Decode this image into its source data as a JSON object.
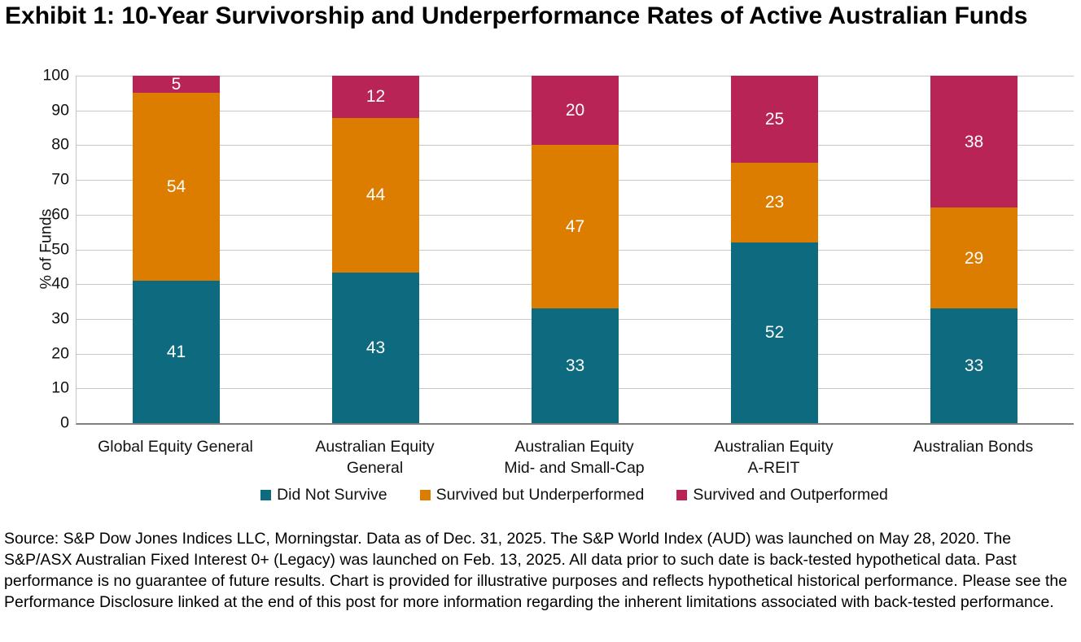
{
  "title": "Exhibit 1: 10-Year Survivorship and Underperformance Rates of Active Australian Funds",
  "source_note": "Source: S&P Dow Jones Indices LLC, Morningstar. Data as of Dec. 31, 2025. The S&P World Index (AUD) was launched on May 28, 2020. The S&P/ASX Australian Fixed Interest 0+ (Legacy) was launched on Feb. 13, 2025. All data prior to such date is back-tested hypothetical data. Past performance is no guarantee of future results. Chart is provided for illustrative purposes and reflects hypothetical historical performance. Please see the Performance Disclosure linked at the end of this post for more information regarding the inherent limitations associated with back-tested performance.",
  "chart_data": {
    "type": "bar",
    "stacked": true,
    "title": "Exhibit 1: 10-Year Survivorship and Underperformance Rates of Active Australian Funds",
    "xlabel": "",
    "ylabel": "% of Funds",
    "ylim": [
      0,
      100
    ],
    "yticks": [
      0,
      10,
      20,
      30,
      40,
      50,
      60,
      70,
      80,
      90,
      100
    ],
    "grid": "horizontal",
    "legend_position": "bottom",
    "categories": [
      "Global Equity General",
      "Australian Equity\nGeneral",
      "Australian Equity\nMid- and Small-Cap",
      "Australian Equity\nA-REIT",
      "Australian Bonds"
    ],
    "series": [
      {
        "name": "Did Not Survive",
        "color": "#0e6a7f",
        "values": [
          41,
          43,
          33,
          52,
          33
        ]
      },
      {
        "name": "Survived but Underperformed",
        "color": "#dd7d00",
        "values": [
          54,
          44,
          47,
          23,
          29
        ]
      },
      {
        "name": "Survived and Outperformed",
        "color": "#b72455",
        "values": [
          5,
          12,
          20,
          25,
          38
        ]
      }
    ]
  },
  "colors": {
    "did_not_survive": "#0e6a7f",
    "survived_but_underperformed": "#dd7d00",
    "survived_and_outperformed": "#b72455",
    "gridline": "#c8c8c8",
    "axis_line": "#808080",
    "bar_label_text": "#ffffff"
  }
}
